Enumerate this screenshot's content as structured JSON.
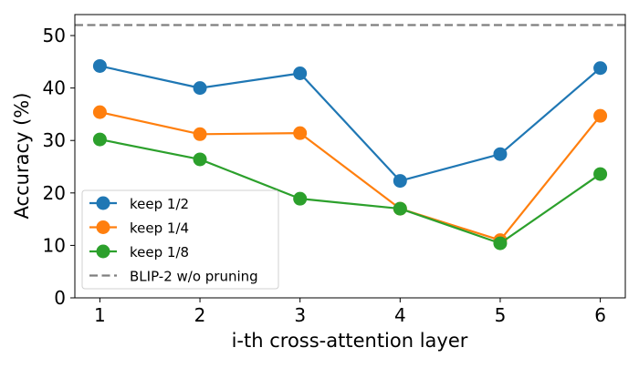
{
  "chart_data": {
    "type": "line",
    "title": "",
    "xlabel": "i-th cross-attention layer",
    "ylabel": "Accuracy (%)",
    "x": [
      1,
      2,
      3,
      4,
      5,
      6
    ],
    "x_ticks": [
      "1",
      "2",
      "3",
      "4",
      "5",
      "6"
    ],
    "y_ticks": [
      "0",
      "10",
      "20",
      "30",
      "40",
      "50"
    ],
    "xlim": [
      0.75,
      6.25
    ],
    "ylim": [
      0,
      54
    ],
    "grid": false,
    "legend_position": "lower-left",
    "series": [
      {
        "name": "keep 1/2",
        "color": "#1f77b4",
        "values": [
          44.2,
          40.0,
          42.8,
          22.3,
          27.4,
          43.8
        ]
      },
      {
        "name": "keep 1/4",
        "color": "#ff7f0e",
        "values": [
          35.4,
          31.2,
          31.4,
          17.0,
          11.0,
          34.7
        ]
      },
      {
        "name": "keep 1/8",
        "color": "#2ca02c",
        "values": [
          30.2,
          26.4,
          18.9,
          17.0,
          10.4,
          23.6
        ]
      }
    ],
    "reference_line": {
      "name": "BLIP-2 w/o pruning",
      "value": 52,
      "color": "#7f7f7f",
      "style": "dashed"
    }
  }
}
